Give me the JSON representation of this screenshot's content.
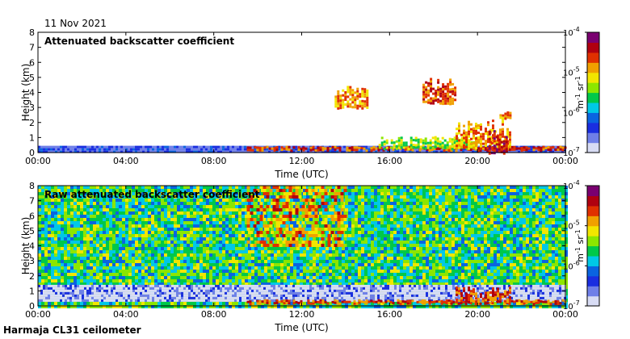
{
  "date_label": "11 Nov 2021",
  "footer_label": "Harmaja CL31 ceilometer",
  "colors": {
    "scale": [
      "#d8dcf4",
      "#6f7fe8",
      "#1a2ee0",
      "#0a64e0",
      "#00c8e6",
      "#00c84a",
      "#8ce600",
      "#f2e600",
      "#f0a000",
      "#e03000",
      "#b00010",
      "#7a0070"
    ],
    "background": "#ffffff"
  },
  "chart_data": [
    {
      "type": "heatmap",
      "title": "Attenuated backscatter coefficient",
      "xlabel": "Time (UTC)",
      "ylabel": "Height (km)",
      "xlim": [
        0,
        24
      ],
      "ylim": [
        0,
        8
      ],
      "x_ticks": [
        "00:00",
        "04:00",
        "08:00",
        "12:00",
        "16:00",
        "20:00",
        "00:00"
      ],
      "y_ticks": [
        "0",
        "1",
        "2",
        "3",
        "4",
        "5",
        "6",
        "7",
        "8"
      ],
      "colorbar": {
        "label_base": "m",
        "label_exp1": "-1",
        "label_mid": "sr",
        "label_exp2": "-1",
        "ticks": [
          {
            "base": "10",
            "exp": "-4"
          },
          {
            "base": "10",
            "exp": "-5"
          },
          {
            "base": "10",
            "exp": "-6"
          },
          {
            "base": "10",
            "exp": "-7"
          }
        ]
      },
      "features": [
        {
          "kind": "boundary_layer",
          "t0": 0,
          "t1": 24,
          "h_low": 0.0,
          "h_high": 0.45,
          "level": 2
        },
        {
          "kind": "cloud",
          "t0": 9.5,
          "t1": 24,
          "h_low": 0.2,
          "h_high": 0.45,
          "level": 9
        },
        {
          "kind": "cloud",
          "t0": 15.5,
          "t1": 20,
          "h_low": 0.3,
          "h_high": 1.1,
          "level": 6
        },
        {
          "kind": "cloud",
          "t0": 19,
          "t1": 21.5,
          "h_low": 0.3,
          "h_high": 2.3,
          "level": 8
        },
        {
          "kind": "cloud",
          "t0": 20.5,
          "t1": 21.3,
          "h_low": 0.0,
          "h_high": 1.5,
          "level": 10
        },
        {
          "kind": "cloud",
          "t0": 13.5,
          "t1": 15.0,
          "h_low": 3.0,
          "h_high": 4.5,
          "level": 8
        },
        {
          "kind": "cloud",
          "t0": 17.5,
          "t1": 19.0,
          "h_low": 3.3,
          "h_high": 5.0,
          "level": 9
        },
        {
          "kind": "cloud",
          "t0": 21.0,
          "t1": 21.5,
          "h_low": 2.3,
          "h_high": 2.8,
          "level": 8
        }
      ]
    },
    {
      "type": "heatmap",
      "title": "Raw attenuated backscatter coefficient",
      "xlabel": "Time (UTC)",
      "ylabel": "Height (km)",
      "xlim": [
        0,
        24
      ],
      "ylim": [
        0,
        8
      ],
      "x_ticks": [
        "00:00",
        "04:00",
        "08:00",
        "12:00",
        "16:00",
        "20:00",
        "00:00"
      ],
      "y_ticks": [
        "0",
        "1",
        "2",
        "3",
        "4",
        "5",
        "6",
        "7",
        "8"
      ],
      "colorbar": {
        "label_base": "m",
        "label_exp1": "-1",
        "label_mid": "sr",
        "label_exp2": "-1",
        "ticks": [
          {
            "base": "10",
            "exp": "-4"
          },
          {
            "base": "10",
            "exp": "-5"
          },
          {
            "base": "10",
            "exp": "-6"
          },
          {
            "base": "10",
            "exp": "-7"
          }
        ]
      },
      "features": [
        {
          "kind": "noise_field",
          "t0": 0,
          "t1": 24,
          "h_low": 0.0,
          "h_high": 8.0,
          "level": 5
        },
        {
          "kind": "low_signal",
          "t0": 0,
          "t1": 24,
          "h_low": 0.3,
          "h_high": 1.4,
          "level": 0
        },
        {
          "kind": "high_noise",
          "t0": 9.5,
          "t1": 14,
          "h_low": 4.0,
          "h_high": 8.0,
          "level": 8
        },
        {
          "kind": "cloud",
          "t0": 9.5,
          "t1": 24,
          "h_low": 0.2,
          "h_high": 0.45,
          "level": 9
        },
        {
          "kind": "cloud",
          "t0": 19,
          "t1": 21.5,
          "h_low": 0.3,
          "h_high": 1.3,
          "level": 9
        }
      ]
    }
  ]
}
